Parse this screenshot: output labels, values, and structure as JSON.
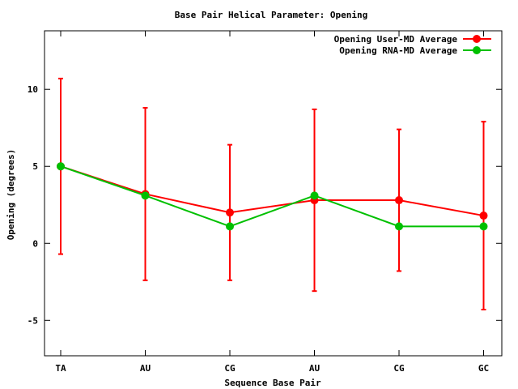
{
  "chart_data": {
    "type": "line",
    "title": "Base Pair Helical Parameter: Opening",
    "xlabel": "Sequence Base Pair",
    "ylabel": "Opening (degrees)",
    "categories": [
      "TA",
      "AU",
      "CG",
      "AU",
      "CG",
      "GC"
    ],
    "ylim": [
      -7.3,
      13.8
    ],
    "yticks": [
      -5,
      0,
      5,
      10
    ],
    "ytick_labels": [
      "-5",
      "0",
      "5",
      "10"
    ],
    "grid": false,
    "legend_position": "top-right",
    "series": [
      {
        "name": "Opening User-MD Average",
        "color": "#ff0000",
        "values": [
          5.0,
          3.2,
          2.0,
          2.8,
          2.8,
          1.8
        ],
        "error_low": [
          -0.7,
          -2.4,
          -2.4,
          -3.1,
          -1.8,
          -4.3
        ],
        "error_high": [
          10.7,
          8.8,
          6.4,
          8.7,
          7.4,
          7.9
        ]
      },
      {
        "name": "Opening RNA-MD Average",
        "color": "#00c000",
        "values": [
          5.0,
          3.1,
          1.1,
          3.1,
          1.1,
          1.1
        ]
      }
    ]
  }
}
